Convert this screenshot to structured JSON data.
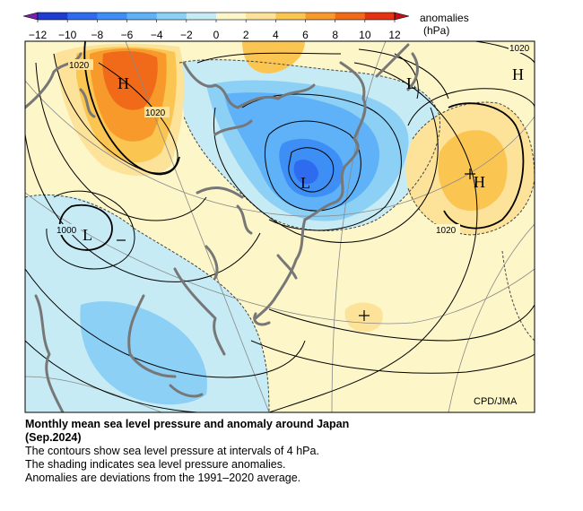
{
  "legend": {
    "label_line1": "anomalies",
    "label_line2": "(hPa)",
    "ticks": [
      "−12",
      "−10",
      "−8",
      "−6",
      "−4",
      "−2",
      "0",
      "2",
      "4",
      "6",
      "8",
      "10",
      "12"
    ],
    "colors": [
      "#1e3ccf",
      "#2e6bee",
      "#3d8ff5",
      "#5fb2f7",
      "#8dd0f6",
      "#c7ebf4",
      "#fdf6c8",
      "#fde39a",
      "#fbc552",
      "#f79a2b",
      "#f06a1a",
      "#e53212"
    ]
  },
  "map": {
    "credit": "CPD/JMA",
    "centers": {
      "h_west": "H",
      "l_north": "L",
      "h_east": "H",
      "l_japan_sea": "L",
      "h_pacific": "H",
      "l_west": "L"
    },
    "isobar_labels": {
      "a": "1020",
      "b": "1020",
      "c": "1020",
      "d": "1020",
      "e": "1000"
    }
  },
  "caption": {
    "title": "Monthly mean sea level pressure and anomaly around Japan",
    "subtitle": "(Sep.2024)",
    "line1": "The contours show sea level pressure at intervals of 4 hPa.",
    "line2": "The shading indicates sea level pressure anomalies.",
    "line3": "Anomalies are deviations from the 1991–2020 average."
  }
}
